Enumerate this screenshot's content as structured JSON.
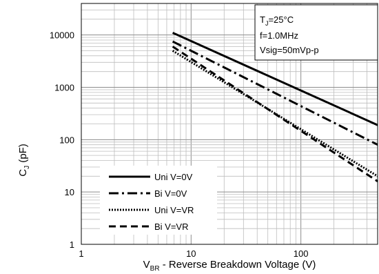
{
  "chart_data": {
    "type": "line",
    "x_scale": "log",
    "y_scale": "log",
    "xlim": [
      1,
      500
    ],
    "ylim": [
      1,
      40000
    ],
    "grid": true,
    "x_ticks": [
      1,
      10,
      100
    ],
    "x_tick_labels": [
      "1",
      "10",
      "100"
    ],
    "y_ticks": [
      1,
      10,
      100,
      1000,
      10000
    ],
    "y_tick_labels": [
      "1",
      "10",
      "100",
      "1000",
      "10000"
    ],
    "ylabel": {
      "main": "C",
      "sub": "J",
      "rest": " (pF)"
    },
    "xlabel": {
      "main": "V",
      "sub": "BR",
      "rest": " - Reverse Breakdown Voltage (V)"
    },
    "annotation": {
      "line1": {
        "main": "T",
        "sub": "J",
        "rest": "=25°C"
      },
      "line2": "f=1.0MHz",
      "line3": "Vsig=50mVp-p"
    },
    "legend_position": "bottom-left",
    "series": [
      {
        "name": "Uni V=0V",
        "dash": "solid",
        "x": [
          6.8,
          500
        ],
        "y": [
          11000,
          190
        ]
      },
      {
        "name": "Bi V=0V",
        "dash": "dashdot",
        "x": [
          6.8,
          500
        ],
        "y": [
          7500,
          80
        ]
      },
      {
        "name": "Uni V=VR",
        "dash": "dotted",
        "x": [
          6.8,
          500
        ],
        "y": [
          5000,
          20
        ]
      },
      {
        "name": "Bi V=VR",
        "dash": "dashed",
        "x": [
          6.8,
          500
        ],
        "y": [
          6000,
          16
        ]
      }
    ]
  }
}
